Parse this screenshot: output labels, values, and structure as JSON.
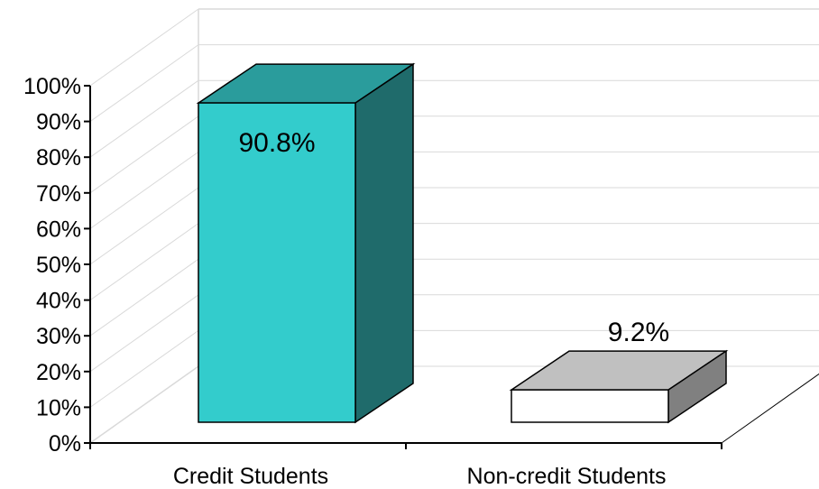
{
  "chart_data": {
    "type": "bar",
    "categories": [
      "Credit Students",
      "Non-credit Students"
    ],
    "values": [
      90.8,
      9.2
    ],
    "data_labels": [
      "90.8%",
      "9.2%"
    ],
    "yticks": [
      "0%",
      "10%",
      "20%",
      "30%",
      "40%",
      "50%",
      "60%",
      "70%",
      "80%",
      "90%",
      "100%"
    ],
    "ylim": [
      0,
      100
    ],
    "title": "",
    "xlabel": "",
    "ylabel": "",
    "grid": true,
    "style": "3d",
    "colors": {
      "credit_front": "#33CCCC",
      "credit_top": "#2A9C9C",
      "credit_side": "#1F6B6B",
      "noncredit_front": "#FFFFFF",
      "noncredit_top": "#C0C0C0",
      "noncredit_side": "#808080",
      "gridline": "#D9D9D9"
    }
  }
}
